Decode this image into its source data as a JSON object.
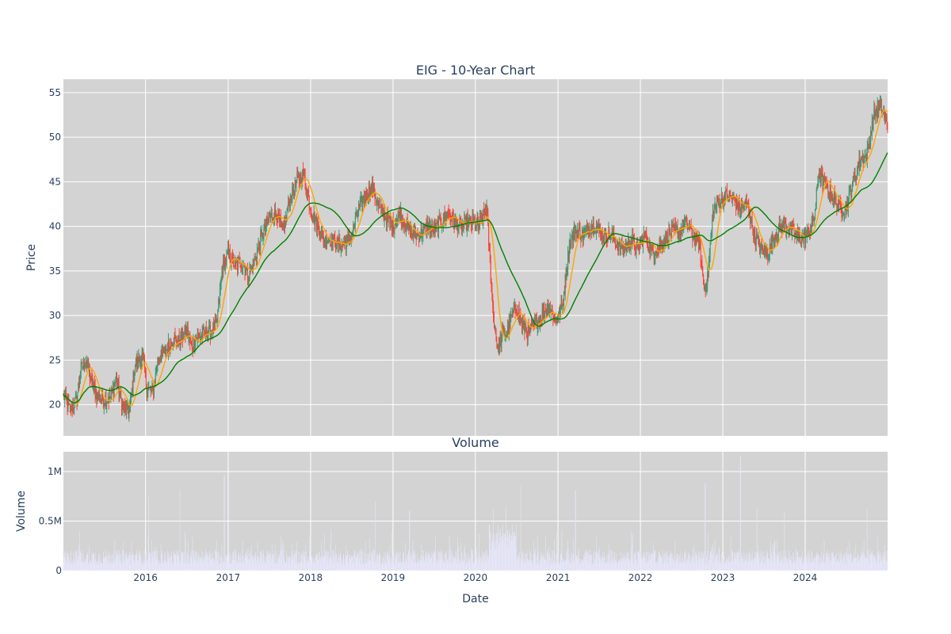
{
  "chart_data": [
    {
      "type": "candlestick",
      "title": "EIG - 10-Year Chart",
      "ylabel": "Price",
      "ylim": [
        16.5,
        56.5
      ],
      "yticks": [
        20,
        25,
        30,
        35,
        40,
        45,
        50,
        55
      ],
      "grid": true,
      "colors": {
        "up": "#3d9970",
        "down": "#ff4136",
        "ma_short": "#ffa500",
        "ma_long": "#008000",
        "background": "#d3d3d3"
      },
      "series": [
        {
          "kind": "close_path",
          "points": [
            [
              "2015-01-02",
              21.0
            ],
            [
              "2015-02-01",
              19.4
            ],
            [
              "2015-03-01",
              20.5
            ],
            [
              "2015-03-20",
              24.0
            ],
            [
              "2015-04-15",
              25.0
            ],
            [
              "2015-05-05",
              22.5
            ],
            [
              "2015-06-01",
              21.0
            ],
            [
              "2015-07-01",
              20.5
            ],
            [
              "2015-08-01",
              20.8
            ],
            [
              "2015-08-25",
              22.8
            ],
            [
              "2015-09-20",
              19.8
            ],
            [
              "2015-10-20",
              19.0
            ],
            [
              "2015-11-15",
              24.5
            ],
            [
              "2015-12-20",
              25.3
            ],
            [
              "2016-01-05",
              22.0
            ],
            [
              "2016-02-01",
              21.3
            ],
            [
              "2016-03-01",
              25.5
            ],
            [
              "2016-04-01",
              26.0
            ],
            [
              "2016-05-01",
              27.5
            ],
            [
              "2016-06-01",
              27.0
            ],
            [
              "2016-07-01",
              28.5
            ],
            [
              "2016-07-20",
              26.5
            ],
            [
              "2016-08-15",
              27.5
            ],
            [
              "2016-09-15",
              28.0
            ],
            [
              "2016-10-15",
              28.2
            ],
            [
              "2016-11-10",
              29.0
            ],
            [
              "2016-12-05",
              35.0
            ],
            [
              "2017-01-01",
              37.0
            ],
            [
              "2017-02-01",
              35.5
            ],
            [
              "2017-03-01",
              36.0
            ],
            [
              "2017-04-01",
              34.5
            ],
            [
              "2017-05-01",
              36.5
            ],
            [
              "2017-06-01",
              39.0
            ],
            [
              "2017-07-01",
              41.0
            ],
            [
              "2017-08-01",
              41.5
            ],
            [
              "2017-09-01",
              39.5
            ],
            [
              "2017-10-01",
              43.0
            ],
            [
              "2017-11-01",
              45.0
            ],
            [
              "2017-12-01",
              46.0
            ],
            [
              "2018-01-01",
              42.0
            ],
            [
              "2018-02-01",
              40.0
            ],
            [
              "2018-03-01",
              38.5
            ],
            [
              "2018-04-01",
              38.5
            ],
            [
              "2018-05-01",
              38.0
            ],
            [
              "2018-06-01",
              38.0
            ],
            [
              "2018-07-01",
              39.0
            ],
            [
              "2018-08-01",
              42.0
            ],
            [
              "2018-09-01",
              43.5
            ],
            [
              "2018-10-01",
              44.5
            ],
            [
              "2018-11-01",
              42.0
            ],
            [
              "2018-12-01",
              41.0
            ],
            [
              "2019-01-01",
              40.0
            ],
            [
              "2019-02-01",
              41.5
            ],
            [
              "2019-03-01",
              40.0
            ],
            [
              "2019-04-01",
              39.0
            ],
            [
              "2019-05-01",
              39.0
            ],
            [
              "2019-06-01",
              40.0
            ],
            [
              "2019-07-01",
              39.5
            ],
            [
              "2019-08-01",
              40.5
            ],
            [
              "2019-09-01",
              41.5
            ],
            [
              "2019-10-01",
              40.5
            ],
            [
              "2019-11-01",
              40.0
            ],
            [
              "2019-12-01",
              40.5
            ],
            [
              "2020-01-15",
              40.0
            ],
            [
              "2020-02-20",
              42.0
            ],
            [
              "2020-03-05",
              36.0
            ],
            [
              "2020-03-20",
              30.0
            ],
            [
              "2020-04-10",
              26.0
            ],
            [
              "2020-04-30",
              28.0
            ],
            [
              "2020-05-20",
              28.0
            ],
            [
              "2020-06-10",
              30.0
            ],
            [
              "2020-07-01",
              31.0
            ],
            [
              "2020-07-25",
              29.0
            ],
            [
              "2020-08-20",
              28.0
            ],
            [
              "2020-09-20",
              29.0
            ],
            [
              "2020-10-20",
              30.0
            ],
            [
              "2020-11-20",
              31.0
            ],
            [
              "2020-12-20",
              29.5
            ],
            [
              "2021-01-20",
              31.0
            ],
            [
              "2021-02-20",
              38.0
            ],
            [
              "2021-03-20",
              39.5
            ],
            [
              "2021-04-20",
              39.0
            ],
            [
              "2021-05-20",
              40.0
            ],
            [
              "2021-06-20",
              40.0
            ],
            [
              "2021-07-20",
              39.0
            ],
            [
              "2021-08-20",
              39.0
            ],
            [
              "2021-09-20",
              38.0
            ],
            [
              "2021-10-20",
              37.5
            ],
            [
              "2021-11-20",
              38.5
            ],
            [
              "2021-12-20",
              37.5
            ],
            [
              "2022-01-20",
              39.0
            ],
            [
              "2022-02-20",
              37.0
            ],
            [
              "2022-03-20",
              37.5
            ],
            [
              "2022-04-20",
              38.5
            ],
            [
              "2022-05-20",
              39.5
            ],
            [
              "2022-06-20",
              39.5
            ],
            [
              "2022-07-20",
              40.5
            ],
            [
              "2022-08-20",
              39.0
            ],
            [
              "2022-09-20",
              38.0
            ],
            [
              "2022-10-10",
              33.0
            ],
            [
              "2022-10-25",
              34.0
            ],
            [
              "2022-11-20",
              42.0
            ],
            [
              "2022-12-20",
              43.0
            ],
            [
              "2023-01-20",
              43.5
            ],
            [
              "2023-02-20",
              43.0
            ],
            [
              "2023-03-20",
              42.0
            ],
            [
              "2023-04-20",
              42.5
            ],
            [
              "2023-05-20",
              39.0
            ],
            [
              "2023-06-20",
              37.5
            ],
            [
              "2023-07-20",
              37.0
            ],
            [
              "2023-08-20",
              39.0
            ],
            [
              "2023-09-20",
              40.0
            ],
            [
              "2023-10-20",
              40.0
            ],
            [
              "2023-11-20",
              39.0
            ],
            [
              "2023-12-20",
              38.5
            ],
            [
              "2024-01-20",
              39.5
            ],
            [
              "2024-02-10",
              41.0
            ],
            [
              "2024-03-01",
              46.0
            ],
            [
              "2024-04-01",
              44.5
            ],
            [
              "2024-05-01",
              43.5
            ],
            [
              "2024-06-01",
              42.0
            ],
            [
              "2024-07-01",
              42.0
            ],
            [
              "2024-08-01",
              45.0
            ],
            [
              "2024-09-01",
              47.5
            ],
            [
              "2024-10-01",
              48.0
            ],
            [
              "2024-11-01",
              52.5
            ],
            [
              "2024-12-01",
              53.5
            ],
            [
              "2024-12-31",
              51.5
            ]
          ]
        },
        {
          "kind": "ma_short",
          "color": "#ffa500"
        },
        {
          "kind": "ma_long",
          "color": "#008000"
        }
      ]
    },
    {
      "type": "bar",
      "title": "Volume",
      "xlabel": "Date",
      "ylabel": "Volume",
      "ylim": [
        0,
        1200000
      ],
      "yticks": [
        0,
        500000,
        1000000
      ],
      "ytick_labels": [
        "0",
        "0.5M",
        "1M"
      ],
      "xlim": [
        "2015-01-02",
        "2024-12-31"
      ],
      "xticks": [
        "2016",
        "2017",
        "2018",
        "2019",
        "2020",
        "2021",
        "2022",
        "2023",
        "2024"
      ],
      "bar_color": "#e6e6fa",
      "spikes": [
        [
          "2015-03-15",
          400000
        ],
        [
          "2016-01-15",
          750000
        ],
        [
          "2016-06-01",
          820000
        ],
        [
          "2016-12-15",
          960000
        ],
        [
          "2018-10-15",
          700000
        ],
        [
          "2019-03-15",
          600000
        ],
        [
          "2020-03-20",
          630000
        ],
        [
          "2020-05-15",
          660000
        ],
        [
          "2020-07-20",
          870000
        ],
        [
          "2021-03-20",
          810000
        ],
        [
          "2022-10-15",
          880000
        ],
        [
          "2023-03-20",
          1150000
        ],
        [
          "2023-06-01",
          630000
        ],
        [
          "2023-10-01",
          600000
        ],
        [
          "2024-10-01",
          620000
        ]
      ]
    }
  ]
}
